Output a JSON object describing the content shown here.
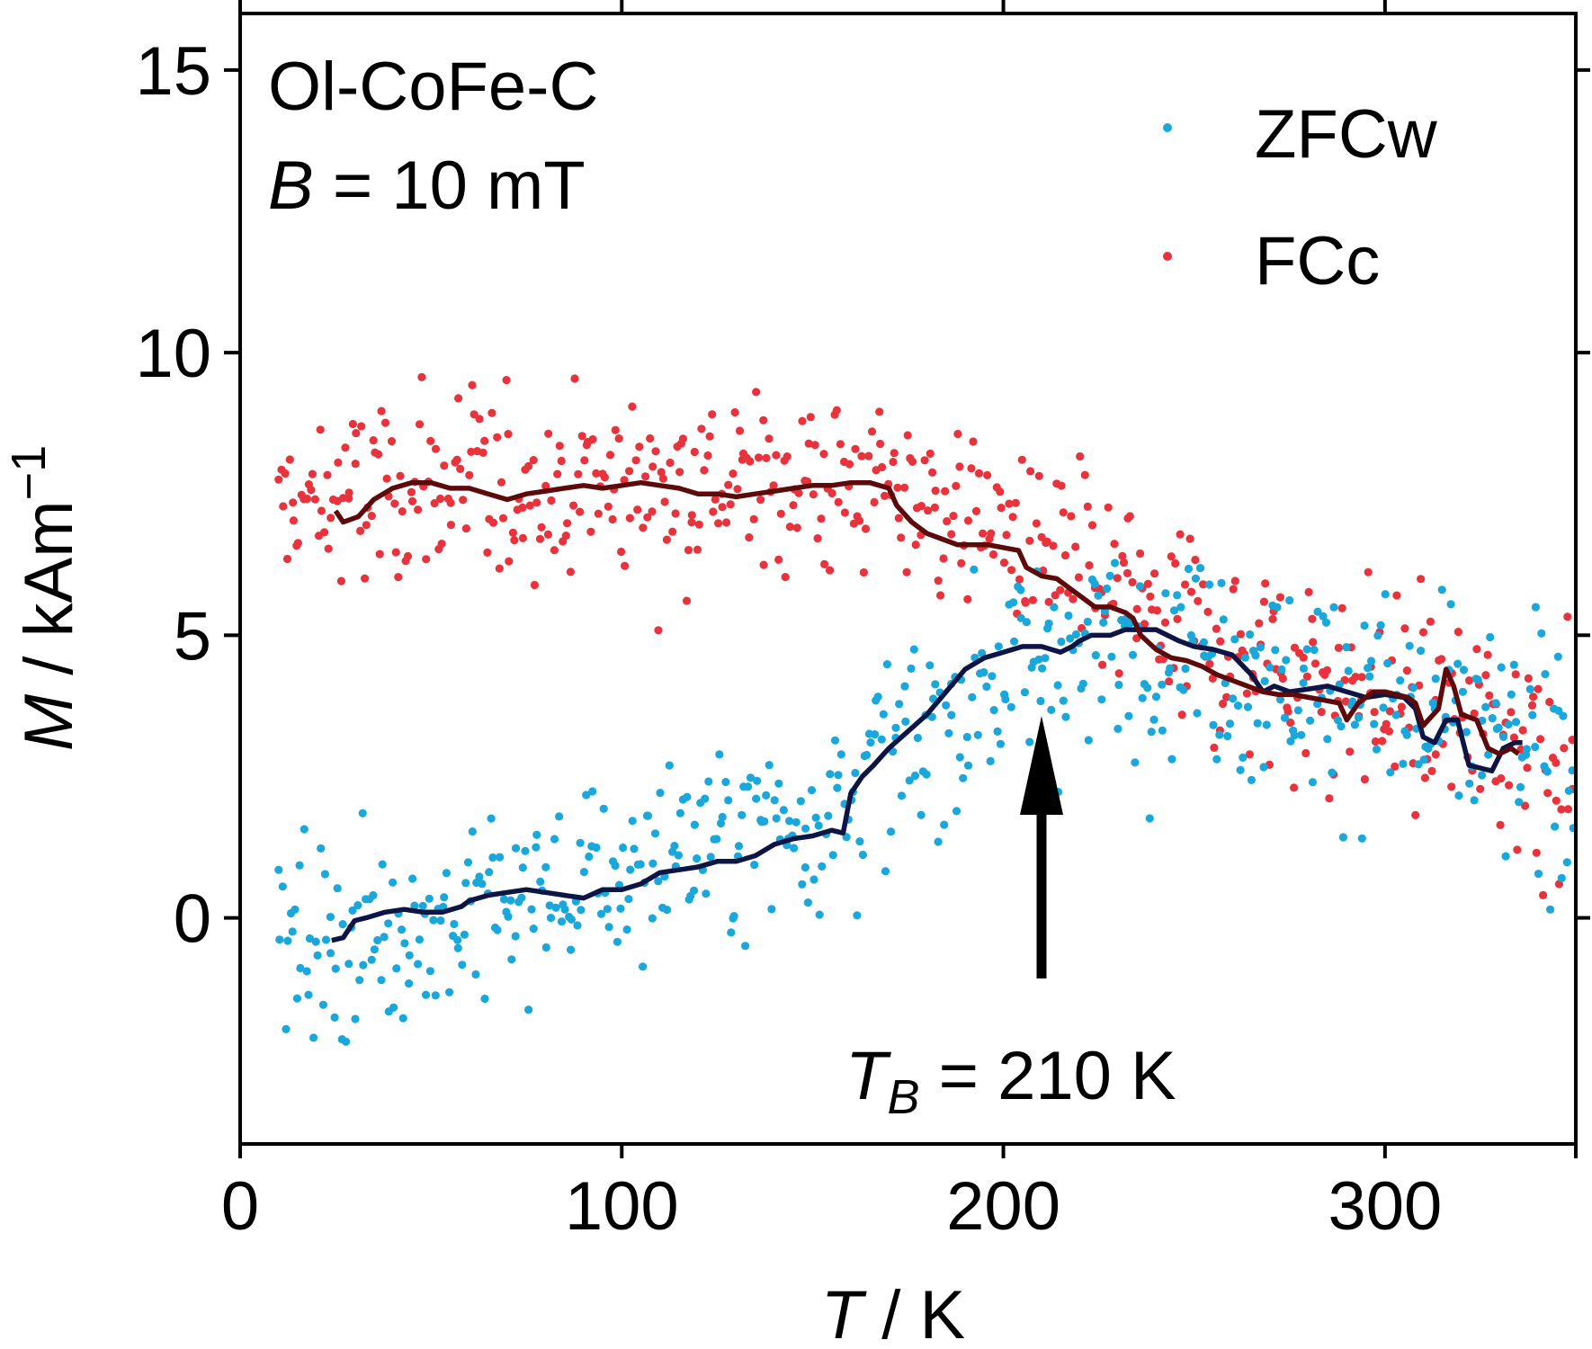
{
  "chart_data": {
    "type": "scatter",
    "xlabel": {
      "var": "T",
      "unit": "K"
    },
    "ylabel": {
      "var": "M",
      "unit": "kAm",
      "exp": "−1"
    },
    "xlim": [
      0,
      350
    ],
    "ylim": [
      -4,
      16
    ],
    "xticks": [
      0,
      100,
      200,
      300
    ],
    "yticks": [
      0,
      5,
      10,
      15
    ],
    "grid": false,
    "legend_position": "top-right",
    "annotations": {
      "sample": "Ol-CoFe-C",
      "field_var": "B",
      "field_text": " = 10 mT",
      "tb_var": "T",
      "tb_sub": "B",
      "tb_text": " = 210 K",
      "tb_value": 210
    },
    "series": [
      {
        "name": "ZFCw",
        "kind": "points",
        "color": "#1aa7dc",
        "trend": [
          [
            10,
            -0.3
          ],
          [
            20,
            -0.4
          ],
          [
            40,
            -0.2
          ],
          [
            60,
            0.0
          ],
          [
            80,
            0.4
          ],
          [
            100,
            0.8
          ],
          [
            120,
            1.3
          ],
          [
            140,
            1.6
          ],
          [
            155,
            2.0
          ],
          [
            165,
            2.6
          ],
          [
            175,
            3.0
          ],
          [
            185,
            3.5
          ],
          [
            195,
            4.2
          ],
          [
            205,
            4.5
          ],
          [
            215,
            4.7
          ],
          [
            225,
            4.8
          ],
          [
            240,
            4.8
          ],
          [
            255,
            4.7
          ],
          [
            270,
            4.3
          ],
          [
            290,
            4.0
          ],
          [
            310,
            3.6
          ],
          [
            330,
            3.1
          ],
          [
            350,
            2.7
          ]
        ],
        "spread": [
          [
            10,
            1.6
          ],
          [
            60,
            1.6
          ],
          [
            100,
            1.7
          ],
          [
            150,
            1.8
          ],
          [
            190,
            1.9
          ],
          [
            250,
            1.9
          ],
          [
            300,
            1.9
          ],
          [
            350,
            2.1
          ]
        ]
      },
      {
        "name": "FCc",
        "kind": "points",
        "color": "#e8333c",
        "trend": [
          [
            10,
            7.2
          ],
          [
            50,
            7.6
          ],
          [
            100,
            7.7
          ],
          [
            150,
            7.7
          ],
          [
            170,
            7.6
          ],
          [
            190,
            7.2
          ],
          [
            210,
            6.5
          ],
          [
            230,
            5.7
          ],
          [
            250,
            5.0
          ],
          [
            270,
            4.5
          ],
          [
            290,
            4.1
          ],
          [
            310,
            3.7
          ],
          [
            330,
            3.3
          ],
          [
            350,
            2.9
          ]
        ],
        "spread": [
          [
            10,
            1.7
          ],
          [
            100,
            1.7
          ],
          [
            170,
            1.7
          ],
          [
            250,
            1.8
          ],
          [
            350,
            2.1
          ]
        ]
      },
      {
        "name": "ZFCw average",
        "kind": "line",
        "color": "#0d1545",
        "points": [
          [
            24,
            -0.4
          ],
          [
            27,
            -0.35
          ],
          [
            30,
            -0.05
          ],
          [
            33,
            0.0
          ],
          [
            38,
            0.1
          ],
          [
            43,
            0.15
          ],
          [
            48,
            0.1
          ],
          [
            53,
            0.1
          ],
          [
            58,
            0.2
          ],
          [
            60,
            0.3
          ],
          [
            65,
            0.4
          ],
          [
            70,
            0.45
          ],
          [
            75,
            0.5
          ],
          [
            80,
            0.45
          ],
          [
            85,
            0.4
          ],
          [
            90,
            0.35
          ],
          [
            95,
            0.5
          ],
          [
            100,
            0.5
          ],
          [
            105,
            0.6
          ],
          [
            110,
            0.8
          ],
          [
            115,
            0.85
          ],
          [
            120,
            0.9
          ],
          [
            125,
            1.0
          ],
          [
            130,
            1.0
          ],
          [
            135,
            1.1
          ],
          [
            140,
            1.3
          ],
          [
            145,
            1.4
          ],
          [
            150,
            1.45
          ],
          [
            155,
            1.55
          ],
          [
            158,
            1.5
          ],
          [
            160,
            2.2
          ],
          [
            163,
            2.5
          ],
          [
            166,
            2.7
          ],
          [
            170,
            3.0
          ],
          [
            175,
            3.3
          ],
          [
            180,
            3.6
          ],
          [
            185,
            4.0
          ],
          [
            190,
            4.4
          ],
          [
            195,
            4.6
          ],
          [
            200,
            4.7
          ],
          [
            205,
            4.8
          ],
          [
            210,
            4.8
          ],
          [
            215,
            4.7
          ],
          [
            218,
            4.8
          ],
          [
            220,
            4.9
          ],
          [
            223,
            5.0
          ],
          [
            228,
            5.0
          ],
          [
            232,
            5.1
          ],
          [
            235,
            5.1
          ],
          [
            240,
            5.1
          ],
          [
            243,
            5.0
          ],
          [
            246,
            4.9
          ],
          [
            250,
            4.8
          ],
          [
            255,
            4.75
          ],
          [
            260,
            4.65
          ],
          [
            265,
            4.3
          ],
          [
            268,
            4.0
          ],
          [
            271,
            4.1
          ],
          [
            275,
            4.0
          ],
          [
            280,
            4.05
          ],
          [
            285,
            4.1
          ],
          [
            290,
            4.0
          ],
          [
            295,
            3.9
          ],
          [
            300,
            3.95
          ],
          [
            305,
            3.9
          ],
          [
            308,
            3.7
          ],
          [
            310,
            3.2
          ],
          [
            313,
            3.1
          ],
          [
            316,
            3.5
          ],
          [
            319,
            3.5
          ],
          [
            322,
            2.7
          ],
          [
            325,
            2.65
          ],
          [
            328,
            2.6
          ],
          [
            331,
            3.0
          ],
          [
            334,
            3.1
          ],
          [
            336,
            3.1
          ]
        ]
      },
      {
        "name": "FCc average",
        "kind": "line",
        "color": "#5c0a0a",
        "points": [
          [
            25,
            7.2
          ],
          [
            27,
            7.0
          ],
          [
            31,
            7.1
          ],
          [
            35,
            7.4
          ],
          [
            40,
            7.6
          ],
          [
            45,
            7.7
          ],
          [
            50,
            7.7
          ],
          [
            55,
            7.6
          ],
          [
            60,
            7.6
          ],
          [
            65,
            7.5
          ],
          [
            70,
            7.4
          ],
          [
            75,
            7.5
          ],
          [
            80,
            7.55
          ],
          [
            85,
            7.6
          ],
          [
            90,
            7.65
          ],
          [
            95,
            7.6
          ],
          [
            100,
            7.65
          ],
          [
            105,
            7.7
          ],
          [
            110,
            7.65
          ],
          [
            115,
            7.6
          ],
          [
            120,
            7.5
          ],
          [
            125,
            7.5
          ],
          [
            130,
            7.45
          ],
          [
            135,
            7.5
          ],
          [
            140,
            7.55
          ],
          [
            145,
            7.6
          ],
          [
            150,
            7.65
          ],
          [
            155,
            7.65
          ],
          [
            160,
            7.7
          ],
          [
            165,
            7.7
          ],
          [
            170,
            7.6
          ],
          [
            172,
            7.3
          ],
          [
            176,
            7.0
          ],
          [
            180,
            6.8
          ],
          [
            184,
            6.7
          ],
          [
            188,
            6.6
          ],
          [
            192,
            6.6
          ],
          [
            196,
            6.6
          ],
          [
            200,
            6.55
          ],
          [
            204,
            6.5
          ],
          [
            206,
            6.2
          ],
          [
            210,
            6.05
          ],
          [
            214,
            6.0
          ],
          [
            218,
            5.8
          ],
          [
            221,
            5.65
          ],
          [
            224,
            5.5
          ],
          [
            228,
            5.5
          ],
          [
            232,
            5.4
          ],
          [
            234,
            5.3
          ],
          [
            236,
            5.0
          ],
          [
            240,
            4.75
          ],
          [
            244,
            4.6
          ],
          [
            248,
            4.55
          ],
          [
            252,
            4.45
          ],
          [
            256,
            4.3
          ],
          [
            260,
            4.2
          ],
          [
            264,
            4.1
          ],
          [
            268,
            4.0
          ],
          [
            272,
            3.95
          ],
          [
            276,
            3.95
          ],
          [
            280,
            3.9
          ],
          [
            284,
            3.85
          ],
          [
            288,
            3.8
          ],
          [
            290,
            3.5
          ],
          [
            293,
            3.8
          ],
          [
            297,
            4.0
          ],
          [
            300,
            4.0
          ],
          [
            303,
            3.95
          ],
          [
            306,
            3.9
          ],
          [
            308,
            3.8
          ],
          [
            310,
            3.4
          ],
          [
            314,
            3.7
          ],
          [
            316,
            4.4
          ],
          [
            318,
            4.1
          ],
          [
            320,
            3.6
          ],
          [
            324,
            3.5
          ],
          [
            327,
            3.0
          ],
          [
            330,
            2.9
          ],
          [
            333,
            3.0
          ],
          [
            335,
            2.9
          ]
        ]
      }
    ]
  }
}
